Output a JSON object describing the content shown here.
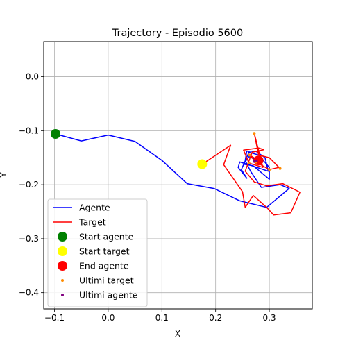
{
  "chart_data": {
    "type": "line",
    "title": "Trajectory - Episodio 5600",
    "xlabel": "X",
    "ylabel": "Y",
    "xlim": [
      -0.12,
      0.38
    ],
    "ylim": [
      -0.43,
      0.065
    ],
    "xticks": [
      -0.1,
      0.0,
      0.1,
      0.2,
      0.3
    ],
    "xtick_labels": [
      "−0.1",
      "0.0",
      "0.1",
      "0.2",
      "0.3"
    ],
    "yticks": [
      0.0,
      -0.1,
      -0.2,
      -0.3,
      -0.4
    ],
    "ytick_labels": [
      "0.0",
      "−0.1",
      "−0.2",
      "−0.3",
      "−0.4"
    ],
    "grid": true,
    "legend_position": "lower-left",
    "series": [
      {
        "name": "Agente",
        "kind": "line",
        "color": "#0000ff",
        "points": [
          [
            -0.098,
            -0.106
          ],
          [
            -0.05,
            -0.119
          ],
          [
            0.0,
            -0.108
          ],
          [
            0.05,
            -0.12
          ],
          [
            0.1,
            -0.155
          ],
          [
            0.147,
            -0.198
          ],
          [
            0.197,
            -0.207
          ],
          [
            0.245,
            -0.23
          ],
          [
            0.295,
            -0.242
          ],
          [
            0.337,
            -0.207
          ],
          [
            0.32,
            -0.2
          ],
          [
            0.285,
            -0.205
          ],
          [
            0.265,
            -0.175
          ],
          [
            0.255,
            -0.155
          ],
          [
            0.258,
            -0.138
          ],
          [
            0.275,
            -0.138
          ],
          [
            0.292,
            -0.15
          ],
          [
            0.298,
            -0.175
          ],
          [
            0.268,
            -0.165
          ],
          [
            0.245,
            -0.158
          ],
          [
            0.242,
            -0.168
          ],
          [
            0.258,
            -0.188
          ],
          [
            0.248,
            -0.172
          ],
          [
            0.262,
            -0.14
          ],
          [
            0.28,
            -0.145
          ],
          [
            0.3,
            -0.168
          ],
          [
            0.3,
            -0.19
          ],
          [
            0.27,
            -0.165
          ],
          [
            0.252,
            -0.162
          ],
          [
            0.262,
            -0.148
          ],
          [
            0.278,
            -0.155
          ]
        ]
      },
      {
        "name": "Target",
        "kind": "line",
        "color": "#ff0000",
        "points": [
          [
            0.175,
            -0.162
          ],
          [
            0.228,
            -0.127
          ],
          [
            0.215,
            -0.163
          ],
          [
            0.25,
            -0.213
          ],
          [
            0.255,
            -0.242
          ],
          [
            0.27,
            -0.22
          ],
          [
            0.295,
            -0.242
          ],
          [
            0.308,
            -0.256
          ],
          [
            0.34,
            -0.252
          ],
          [
            0.357,
            -0.214
          ],
          [
            0.325,
            -0.198
          ],
          [
            0.295,
            -0.202
          ],
          [
            0.272,
            -0.195
          ],
          [
            0.255,
            -0.175
          ],
          [
            0.268,
            -0.14
          ],
          [
            0.29,
            -0.135
          ],
          [
            0.28,
            -0.132
          ],
          [
            0.252,
            -0.136
          ],
          [
            0.262,
            -0.16
          ],
          [
            0.288,
            -0.168
          ],
          [
            0.272,
            -0.105
          ],
          [
            0.28,
            -0.145
          ],
          [
            0.3,
            -0.15
          ],
          [
            0.318,
            -0.168
          ],
          [
            0.3,
            -0.172
          ],
          [
            0.275,
            -0.158
          ],
          [
            0.263,
            -0.145
          ],
          [
            0.28,
            -0.155
          ]
        ]
      },
      {
        "name": "Start agente",
        "kind": "marker",
        "color": "#008000",
        "size": 7,
        "points": [
          [
            -0.098,
            -0.106
          ]
        ]
      },
      {
        "name": "Start target",
        "kind": "marker",
        "color": "#ffff00",
        "size": 7,
        "points": [
          [
            0.175,
            -0.162
          ]
        ]
      },
      {
        "name": "End agente",
        "kind": "marker",
        "color": "#ff0000",
        "size": 7,
        "points": [
          [
            0.28,
            -0.155
          ]
        ]
      },
      {
        "name": "Ultimi target",
        "kind": "marker",
        "color": "#ff8c00",
        "size": 2,
        "points": [
          [
            0.272,
            -0.105
          ],
          [
            0.262,
            -0.16
          ],
          [
            0.32,
            -0.17
          ],
          [
            0.3,
            -0.172
          ],
          [
            0.275,
            -0.158
          ],
          [
            0.263,
            -0.145
          ]
        ]
      },
      {
        "name": "Ultimi agente",
        "kind": "marker",
        "color": "#800080",
        "size": 2,
        "points": [
          [
            0.272,
            -0.157
          ],
          [
            0.276,
            -0.156
          ]
        ]
      }
    ]
  }
}
